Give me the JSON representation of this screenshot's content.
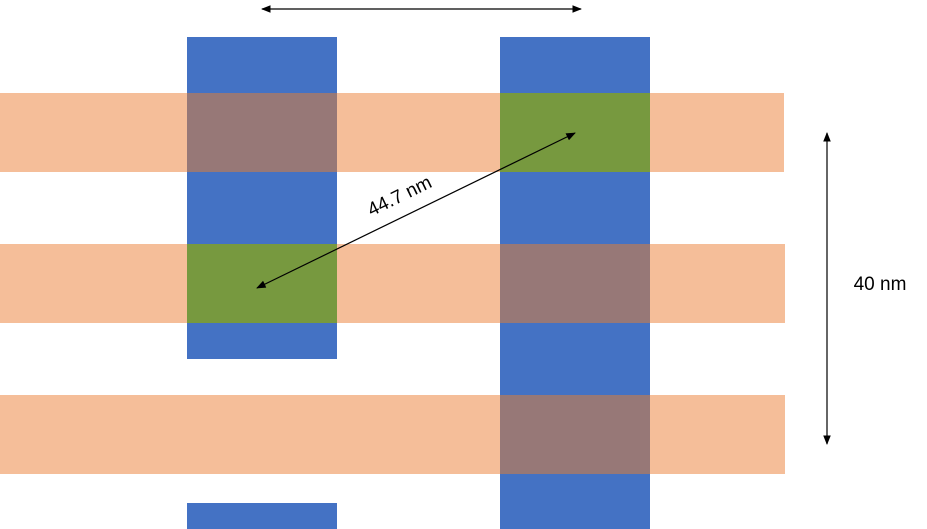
{
  "annotations": {
    "diagonal": "44.7 nm",
    "vertical": "40 nm"
  }
}
